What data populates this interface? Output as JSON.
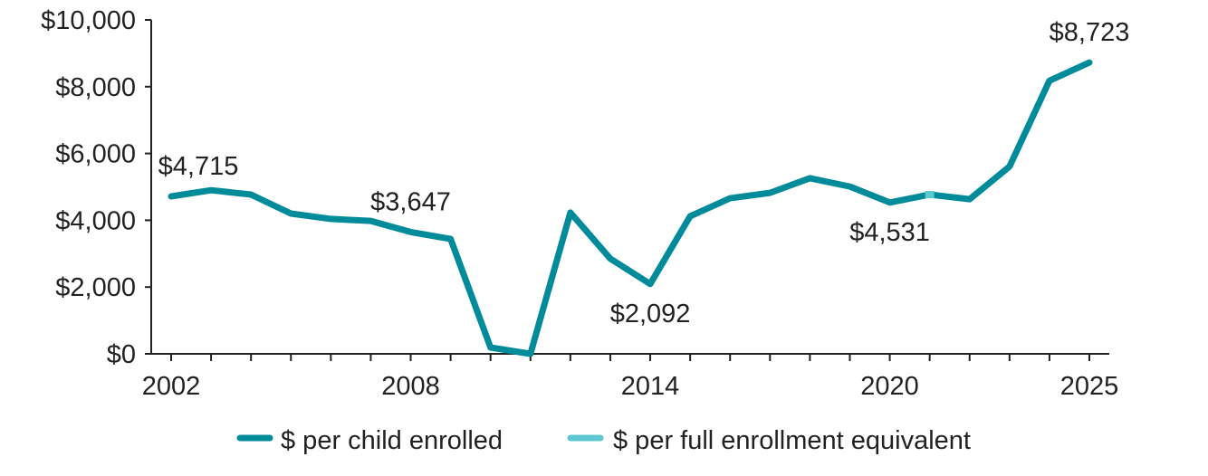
{
  "chart_data": {
    "type": "line",
    "title": "",
    "xlabel": "",
    "ylabel": "",
    "x": [
      2002,
      2003,
      2004,
      2005,
      2006,
      2007,
      2008,
      2009,
      2010,
      2011,
      2012,
      2013,
      2014,
      2015,
      2016,
      2017,
      2018,
      2019,
      2020,
      2021,
      2022,
      2023,
      2024,
      2025
    ],
    "series": [
      {
        "name": "$ per child enrolled",
        "color": "#008b9a",
        "values": [
          4715,
          4900,
          4770,
          4200,
          4040,
          3980,
          3647,
          3440,
          190,
          0,
          4230,
          2850,
          2092,
          4120,
          4660,
          4820,
          5260,
          5010,
          4531,
          4770,
          4630,
          5610,
          8180,
          8723
        ]
      },
      {
        "name": "$ per full enrollment equivalent",
        "color": "#5bc8d2",
        "x": [
          2021
        ],
        "values": [
          4770
        ]
      }
    ],
    "ylim": [
      0,
      10000
    ],
    "yticks": [
      "$0",
      "$2,000",
      "$4,000",
      "$6,000",
      "$8,000",
      "$10,000"
    ],
    "ytick_values": [
      0,
      2000,
      4000,
      6000,
      8000,
      10000
    ],
    "xticks": [
      "2002",
      "2008",
      "2014",
      "2020",
      "2025"
    ],
    "xtick_values": [
      2002,
      2008,
      2014,
      2020,
      2025
    ],
    "annotations": [
      {
        "x": 2002,
        "value": 4715,
        "text": "$4,715",
        "pos": "above"
      },
      {
        "x": 2008,
        "value": 3647,
        "text": "$3,647",
        "pos": "above"
      },
      {
        "x": 2014,
        "value": 2092,
        "text": "$2,092",
        "pos": "below"
      },
      {
        "x": 2020,
        "value": 4531,
        "text": "$4,531",
        "pos": "below"
      },
      {
        "x": 2025,
        "value": 8723,
        "text": "$8,723",
        "pos": "above"
      }
    ],
    "legend": "bottom",
    "grid": false
  }
}
